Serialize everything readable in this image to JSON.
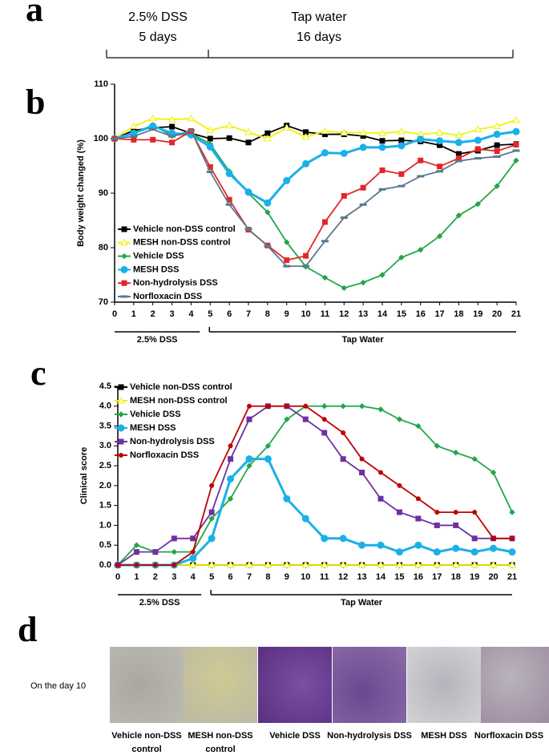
{
  "panel_labels": [
    "a",
    "b",
    "c",
    "d"
  ],
  "timeline": {
    "phases": [
      {
        "label": "2.5% DSS",
        "duration": "5 days"
      },
      {
        "label": "Tap water",
        "duration": "16 days"
      }
    ]
  },
  "chart_data": [
    {
      "type": "line",
      "y_label": "Body weight changed (%)",
      "x": [
        0,
        1,
        2,
        3,
        4,
        5,
        6,
        7,
        8,
        9,
        10,
        11,
        12,
        13,
        14,
        15,
        16,
        17,
        18,
        19,
        20,
        21
      ],
      "xlim": [
        0,
        21
      ],
      "xticks": [
        0,
        1,
        2,
        3,
        4,
        5,
        6,
        7,
        8,
        9,
        10,
        11,
        12,
        13,
        14,
        15,
        16,
        17,
        18,
        19,
        20,
        21
      ],
      "ylim": [
        70,
        110
      ],
      "yticks": [
        70,
        80,
        90,
        100,
        110
      ],
      "annotations": [
        "2.5% DSS",
        "Tap Water"
      ],
      "series": [
        {
          "name": "Vehicle non-DSS control",
          "color": "#000000",
          "marker": "square",
          "values": [
            100,
            101.5,
            102,
            102.2,
            101,
            100,
            100.1,
            99.3,
            101,
            102.4,
            101.2,
            100.8,
            100.8,
            100.5,
            99.6,
            99.7,
            99.5,
            98.8,
            97.2,
            97.8,
            98.8,
            99
          ]
        },
        {
          "name": "MESH non-DSS control",
          "color": "#f2f200",
          "marker": "triangle",
          "values": [
            100,
            102.3,
            103.7,
            103.5,
            103.7,
            101.5,
            102.4,
            101.2,
            100,
            102,
            100.3,
            101.4,
            101.1,
            101.1,
            101,
            101.3,
            100.8,
            101.1,
            100.6,
            101.7,
            102.3,
            103.4
          ]
        },
        {
          "name": "Vehicle DSS",
          "color": "#22a64a",
          "marker": "diamond",
          "values": [
            100,
            101,
            102.5,
            100.5,
            101,
            99,
            94,
            90,
            86.5,
            81,
            76.5,
            74.5,
            72.6,
            73.6,
            75,
            78.2,
            79.6,
            82.1,
            85.9,
            88,
            91.3,
            96
          ]
        },
        {
          "name": "MESH DSS",
          "color": "#1ab0e8",
          "marker": "circle",
          "values": [
            100,
            101,
            102.3,
            101,
            100.7,
            98.5,
            93.6,
            90.2,
            88.2,
            92.3,
            95.4,
            97.4,
            97.3,
            98.4,
            98.4,
            98.7,
            99.9,
            99.6,
            99.3,
            99.7,
            100.8,
            101.3
          ]
        },
        {
          "name": "Non-hydrolysis DSS",
          "color": "#e3262b",
          "marker": "square",
          "values": [
            100,
            99.8,
            99.8,
            99.3,
            101.4,
            94.8,
            88.8,
            83.3,
            80.4,
            77.7,
            78.5,
            84.7,
            89.5,
            91,
            94.2,
            93.5,
            96,
            94.9,
            96.4,
            98.1,
            97.7,
            98.9
          ]
        },
        {
          "name": "Norfloxacin DSS",
          "color": "#5a7a8c",
          "marker": "dash",
          "values": [
            100,
            100.4,
            101.7,
            100.4,
            101.5,
            93.9,
            87.9,
            83.4,
            80.3,
            76.6,
            76.6,
            81.2,
            85.5,
            87.9,
            90.7,
            91.3,
            93.1,
            94,
            95.9,
            96.4,
            96.7,
            97.8
          ]
        }
      ]
    },
    {
      "type": "line",
      "y_label": "Clinical score",
      "x": [
        0,
        1,
        2,
        3,
        4,
        5,
        6,
        7,
        8,
        9,
        10,
        11,
        12,
        13,
        14,
        15,
        16,
        17,
        18,
        19,
        20,
        21
      ],
      "xlim": [
        0,
        21
      ],
      "xticks": [
        0,
        1,
        2,
        3,
        4,
        5,
        6,
        7,
        8,
        9,
        10,
        11,
        12,
        13,
        14,
        15,
        16,
        17,
        18,
        19,
        20,
        21
      ],
      "ylim": [
        0,
        4.5
      ],
      "yticks": [
        {
          "value": 0,
          "label": "0.0"
        },
        0.5,
        {
          "value": 1,
          "label": "1.0"
        },
        1.5,
        {
          "value": 2,
          "label": "2.0"
        },
        2.5,
        {
          "value": 3,
          "label": "3.0"
        },
        3.5,
        {
          "value": 4,
          "label": "4.0"
        },
        4.5
      ],
      "annotations": [
        "2.5% DSS",
        "Tap Water"
      ],
      "series": [
        {
          "name": "Vehicle non-DSS control",
          "color": "#000000",
          "marker": "square",
          "values": [
            0,
            0,
            0,
            0,
            0,
            0,
            0,
            0,
            0,
            0,
            0,
            0,
            0,
            0,
            0,
            0,
            0,
            0,
            0,
            0,
            0,
            0
          ]
        },
        {
          "name": "MESH non-DSS control",
          "color": "#f2f200",
          "marker": "triangle",
          "values": [
            0,
            0,
            0,
            0,
            0,
            0,
            0,
            0,
            0,
            0,
            0,
            0,
            0,
            0,
            0,
            0,
            0,
            0,
            0,
            0,
            0,
            0
          ]
        },
        {
          "name": "Vehicle DSS",
          "color": "#22a64a",
          "marker": "diamond",
          "values": [
            0,
            0.5,
            0.33,
            0.33,
            0.33,
            1.17,
            1.67,
            2.5,
            3,
            3.67,
            4,
            4,
            4,
            4,
            3.92,
            3.67,
            3.5,
            3,
            2.83,
            2.67,
            2.33,
            1.33
          ]
        },
        {
          "name": "MESH DSS",
          "color": "#1ab0e8",
          "marker": "circle",
          "values": [
            0,
            0,
            0,
            0,
            0.17,
            0.67,
            2.17,
            2.67,
            2.67,
            1.67,
            1.17,
            0.67,
            0.67,
            0.5,
            0.5,
            0.33,
            0.5,
            0.33,
            0.42,
            0.33,
            0.42,
            0.33
          ]
        },
        {
          "name": "Non-hydrolysis DSS",
          "color": "#7030a0",
          "marker": "square",
          "values": [
            0,
            0.33,
            0.33,
            0.67,
            0.67,
            1.33,
            2.67,
            3.67,
            4,
            4,
            3.67,
            3.33,
            2.67,
            2.33,
            1.67,
            1.33,
            1.17,
            1,
            1,
            0.67,
            0.67,
            0.67
          ]
        },
        {
          "name": "Norfloxacin DSS",
          "color": "#c00000",
          "marker": "circle-small",
          "values": [
            0,
            0,
            0,
            0,
            0.33,
            2,
            3,
            4,
            4,
            4,
            4,
            3.67,
            3.33,
            2.67,
            2.33,
            2,
            1.67,
            1.33,
            1.33,
            1.33,
            0.67,
            0.67
          ]
        }
      ]
    }
  ],
  "photos": {
    "row_label": "On the day 10",
    "items": [
      "Vehicle non-DSS control",
      "MESH non-DSS control",
      "Vehicle DSS",
      "Non-hydrolysis DSS",
      "MESH DSS",
      "Norfloxacin DSS"
    ]
  }
}
